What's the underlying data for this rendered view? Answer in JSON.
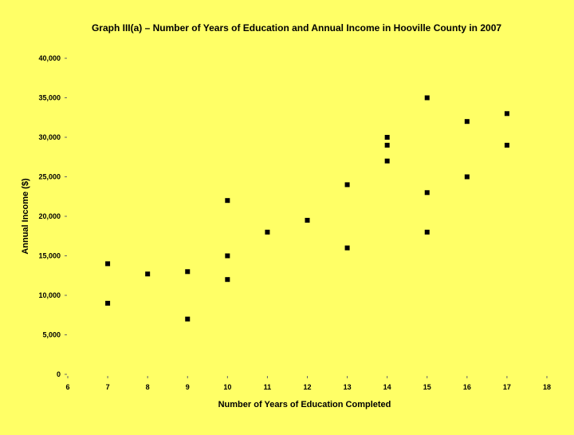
{
  "colors": {
    "background": "#FFFF66",
    "point": "#000000",
    "tick": "#666666"
  },
  "chart_data": {
    "type": "scatter",
    "title": "Graph III(a) – Number of Years of Education and Annual Income in Hooville County in 2007",
    "xlabel": "Number of Years of Education Completed",
    "ylabel": "Annual Income ($)",
    "xlim": [
      6,
      18
    ],
    "ylim": [
      0,
      40000
    ],
    "x_ticks": [
      6,
      7,
      8,
      9,
      10,
      11,
      12,
      13,
      14,
      15,
      16,
      17,
      18
    ],
    "y_ticks": [
      0,
      5000,
      10000,
      15000,
      20000,
      25000,
      30000,
      35000,
      40000
    ],
    "x_tick_labels": [
      "6",
      "7",
      "8",
      "9",
      "10",
      "11",
      "12",
      "13",
      "14",
      "15",
      "16",
      "17",
      "18"
    ],
    "y_tick_labels": [
      "0",
      "5,000",
      "10,000",
      "15,000",
      "20,000",
      "25,000",
      "30,000",
      "35,000",
      "40,000"
    ],
    "grid": false,
    "legend": "none",
    "points": [
      {
        "x": 7,
        "y": 14000
      },
      {
        "x": 7,
        "y": 9000
      },
      {
        "x": 8,
        "y": 12700
      },
      {
        "x": 9,
        "y": 13000
      },
      {
        "x": 9,
        "y": 7000
      },
      {
        "x": 10,
        "y": 22000
      },
      {
        "x": 10,
        "y": 15000
      },
      {
        "x": 10,
        "y": 12000
      },
      {
        "x": 11,
        "y": 18000
      },
      {
        "x": 12,
        "y": 19500
      },
      {
        "x": 13,
        "y": 24000
      },
      {
        "x": 13,
        "y": 16000
      },
      {
        "x": 14,
        "y": 30000
      },
      {
        "x": 14,
        "y": 29000
      },
      {
        "x": 14,
        "y": 27000
      },
      {
        "x": 15,
        "y": 35000
      },
      {
        "x": 15,
        "y": 23000
      },
      {
        "x": 15,
        "y": 18000
      },
      {
        "x": 16,
        "y": 32000
      },
      {
        "x": 16,
        "y": 25000
      },
      {
        "x": 17,
        "y": 33000
      },
      {
        "x": 17,
        "y": 29000
      }
    ]
  }
}
